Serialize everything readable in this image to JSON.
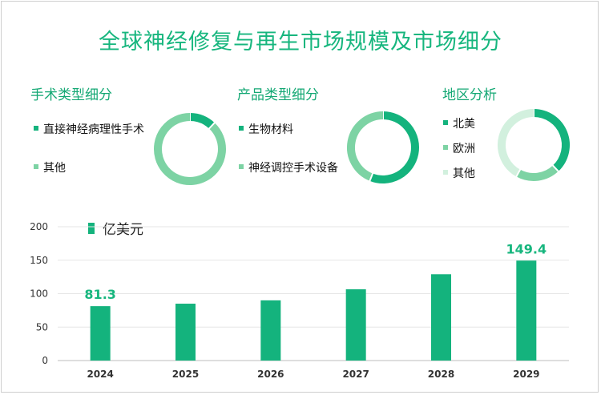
{
  "title": "全球神经修复与再生市场规模及市场细分",
  "colors": {
    "dark": "#14b37d",
    "mid": "#7dd3a4",
    "light": "#d2f0de",
    "title": "#17b67e"
  },
  "chart_data": [
    {
      "type": "pie",
      "title": "手术类型细分",
      "labels": [
        "直接神经病理性手术",
        "其他"
      ],
      "values": [
        12,
        88
      ],
      "colors": [
        "#14b37d",
        "#7dd3a4"
      ]
    },
    {
      "type": "pie",
      "title": "产品类型细分",
      "labels": [
        "生物材料",
        "神经调控手术设备"
      ],
      "values": [
        56,
        44
      ],
      "colors": [
        "#14b37d",
        "#7dd3a4"
      ]
    },
    {
      "type": "pie",
      "title": "地区分析",
      "labels": [
        "北美",
        "欧洲",
        "其他"
      ],
      "values": [
        38,
        20,
        42
      ],
      "colors": [
        "#14b37d",
        "#7dd3a4",
        "#d2f0de"
      ]
    },
    {
      "type": "bar",
      "title": "",
      "legend": "亿美元",
      "categories": [
        "2024",
        "2025",
        "2026",
        "2027",
        "2028",
        "2029"
      ],
      "values": [
        81.3,
        85.0,
        90.0,
        106.5,
        129.0,
        149.4
      ],
      "data_labels": [
        "81.3",
        "",
        "",
        "",
        "",
        "149.4"
      ],
      "yticks": [
        0,
        50,
        100,
        150,
        200
      ],
      "ylim": [
        0,
        200
      ],
      "color": "#14b37d"
    }
  ]
}
